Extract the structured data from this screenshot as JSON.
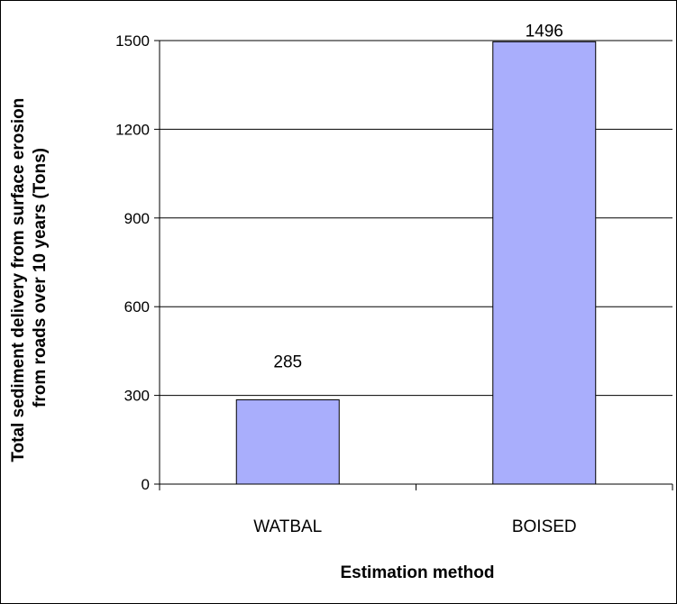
{
  "chart_data": {
    "type": "bar",
    "categories": [
      "WATBAL",
      "BOISED"
    ],
    "values": [
      285,
      1496
    ],
    "data_labels": [
      "285",
      "1496"
    ],
    "xlabel": "Estimation method",
    "ylabel_lines": [
      "Total sediment delivery from surface erosion",
      "from roads over 10 years  (Tons)"
    ],
    "ylim": [
      0,
      1500
    ],
    "yticks": [
      0,
      300,
      600,
      900,
      1200,
      1500
    ],
    "ytick_labels": [
      "0",
      "300",
      "600",
      "900",
      "1200",
      "1500"
    ],
    "grid": true,
    "legend": false,
    "colors": {
      "bar_fill": "#a9aefc",
      "bar_stroke": "#000000",
      "gridline": "#000000",
      "plot_background": "#ffffff"
    }
  }
}
